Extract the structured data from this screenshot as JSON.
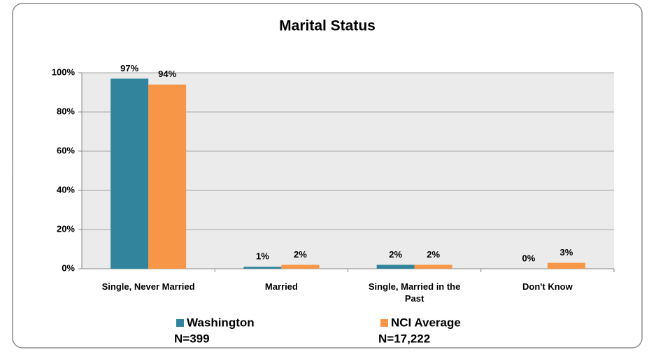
{
  "chart_data": {
    "type": "bar",
    "title": "Marital Status",
    "categories": [
      "Single, Never Married",
      "Married",
      "Single, Married in the Past",
      "Don't Know"
    ],
    "series": [
      {
        "name": "Washington",
        "n": "N=399",
        "color": "#31849b",
        "values": [
          97,
          1,
          2,
          0
        ],
        "value_labels": [
          "97%",
          "1%",
          "2%",
          "0%"
        ]
      },
      {
        "name": "NCI Average",
        "n": "N=17,222",
        "color": "#f79646",
        "values": [
          94,
          2,
          2,
          3
        ],
        "value_labels": [
          "94%",
          "2%",
          "2%",
          "3%"
        ]
      }
    ],
    "ylim": [
      0,
      100
    ],
    "yticks": [
      {
        "value": 0,
        "label": "0%"
      },
      {
        "value": 20,
        "label": "20%"
      },
      {
        "value": 40,
        "label": "40%"
      },
      {
        "value": 60,
        "label": "60%"
      },
      {
        "value": 80,
        "label": "80%"
      },
      {
        "value": 100,
        "label": "100%"
      }
    ],
    "grid": true,
    "legend": "bottom"
  }
}
